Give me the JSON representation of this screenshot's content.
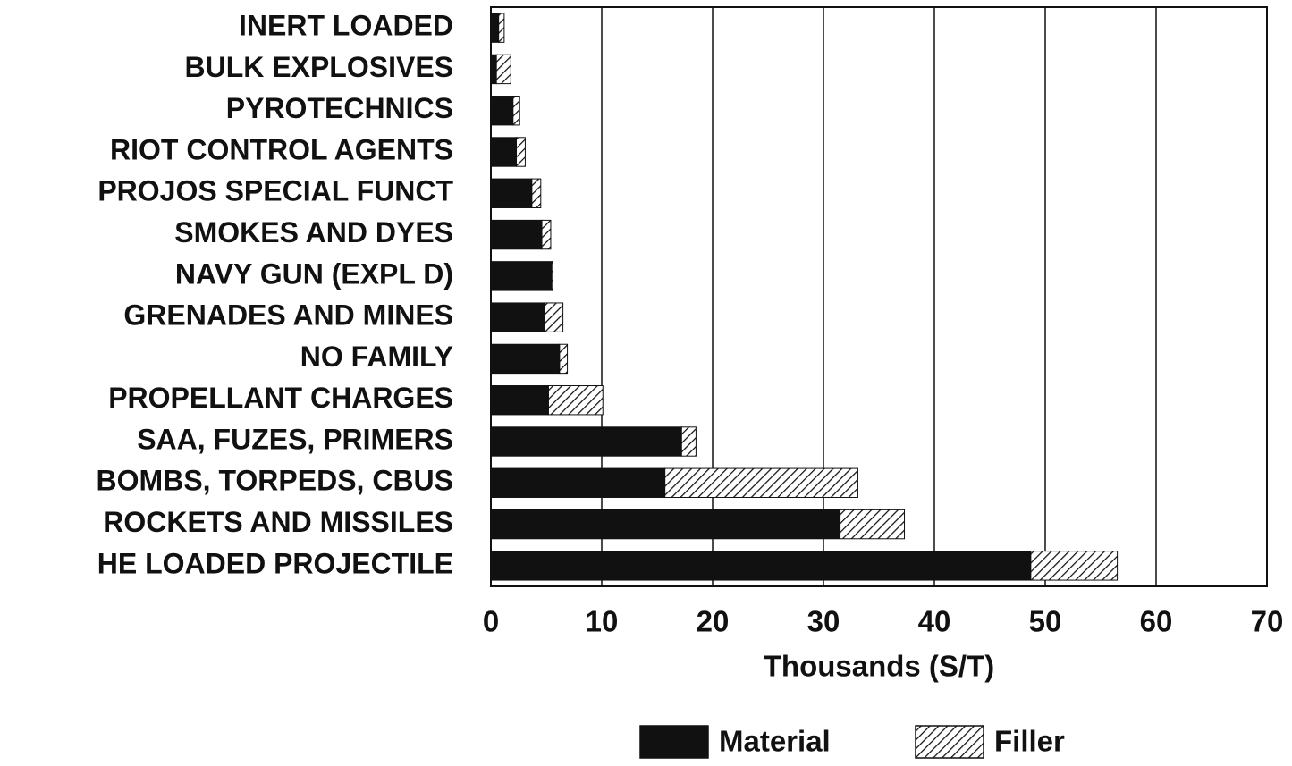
{
  "chart_data": {
    "type": "stacked_barh",
    "categories": [
      "INERT LOADED",
      "BULK EXPLOSIVES",
      "PYROTECHNICS",
      "RIOT CONTROL AGENTS",
      "PROJOS SPECIAL FUNCT",
      "SMOKES AND DYES",
      "NAVY GUN (EXPL D)",
      "GRENADES AND MINES",
      "NO FAMILY",
      "PROPELLANT CHARGES",
      "SAA, FUZES, PRIMERS",
      "BOMBS, TORPEDS, CBUS",
      "ROCKETS AND MISSILES",
      "HE LOADED PROJECTILE"
    ],
    "series": [
      {
        "name": "Material",
        "color": "#111111",
        "pattern": "solid",
        "values": [
          0.7,
          0.5,
          2.0,
          2.3,
          3.7,
          4.6,
          5.5,
          4.8,
          6.2,
          5.2,
          17.2,
          15.7,
          31.5,
          48.7
        ]
      },
      {
        "name": "Filler",
        "color": "#111111",
        "pattern": "hatch",
        "values": [
          0.5,
          1.3,
          0.6,
          0.8,
          0.8,
          0.8,
          0.1,
          1.7,
          0.7,
          4.9,
          1.3,
          17.4,
          5.8,
          7.8
        ]
      }
    ],
    "xlabel": "Thousands (S/T)",
    "xlim": [
      0,
      70
    ],
    "xticks": [
      0,
      10,
      20,
      30,
      40,
      50,
      60,
      70
    ],
    "grid": true,
    "legend": "bottom"
  }
}
